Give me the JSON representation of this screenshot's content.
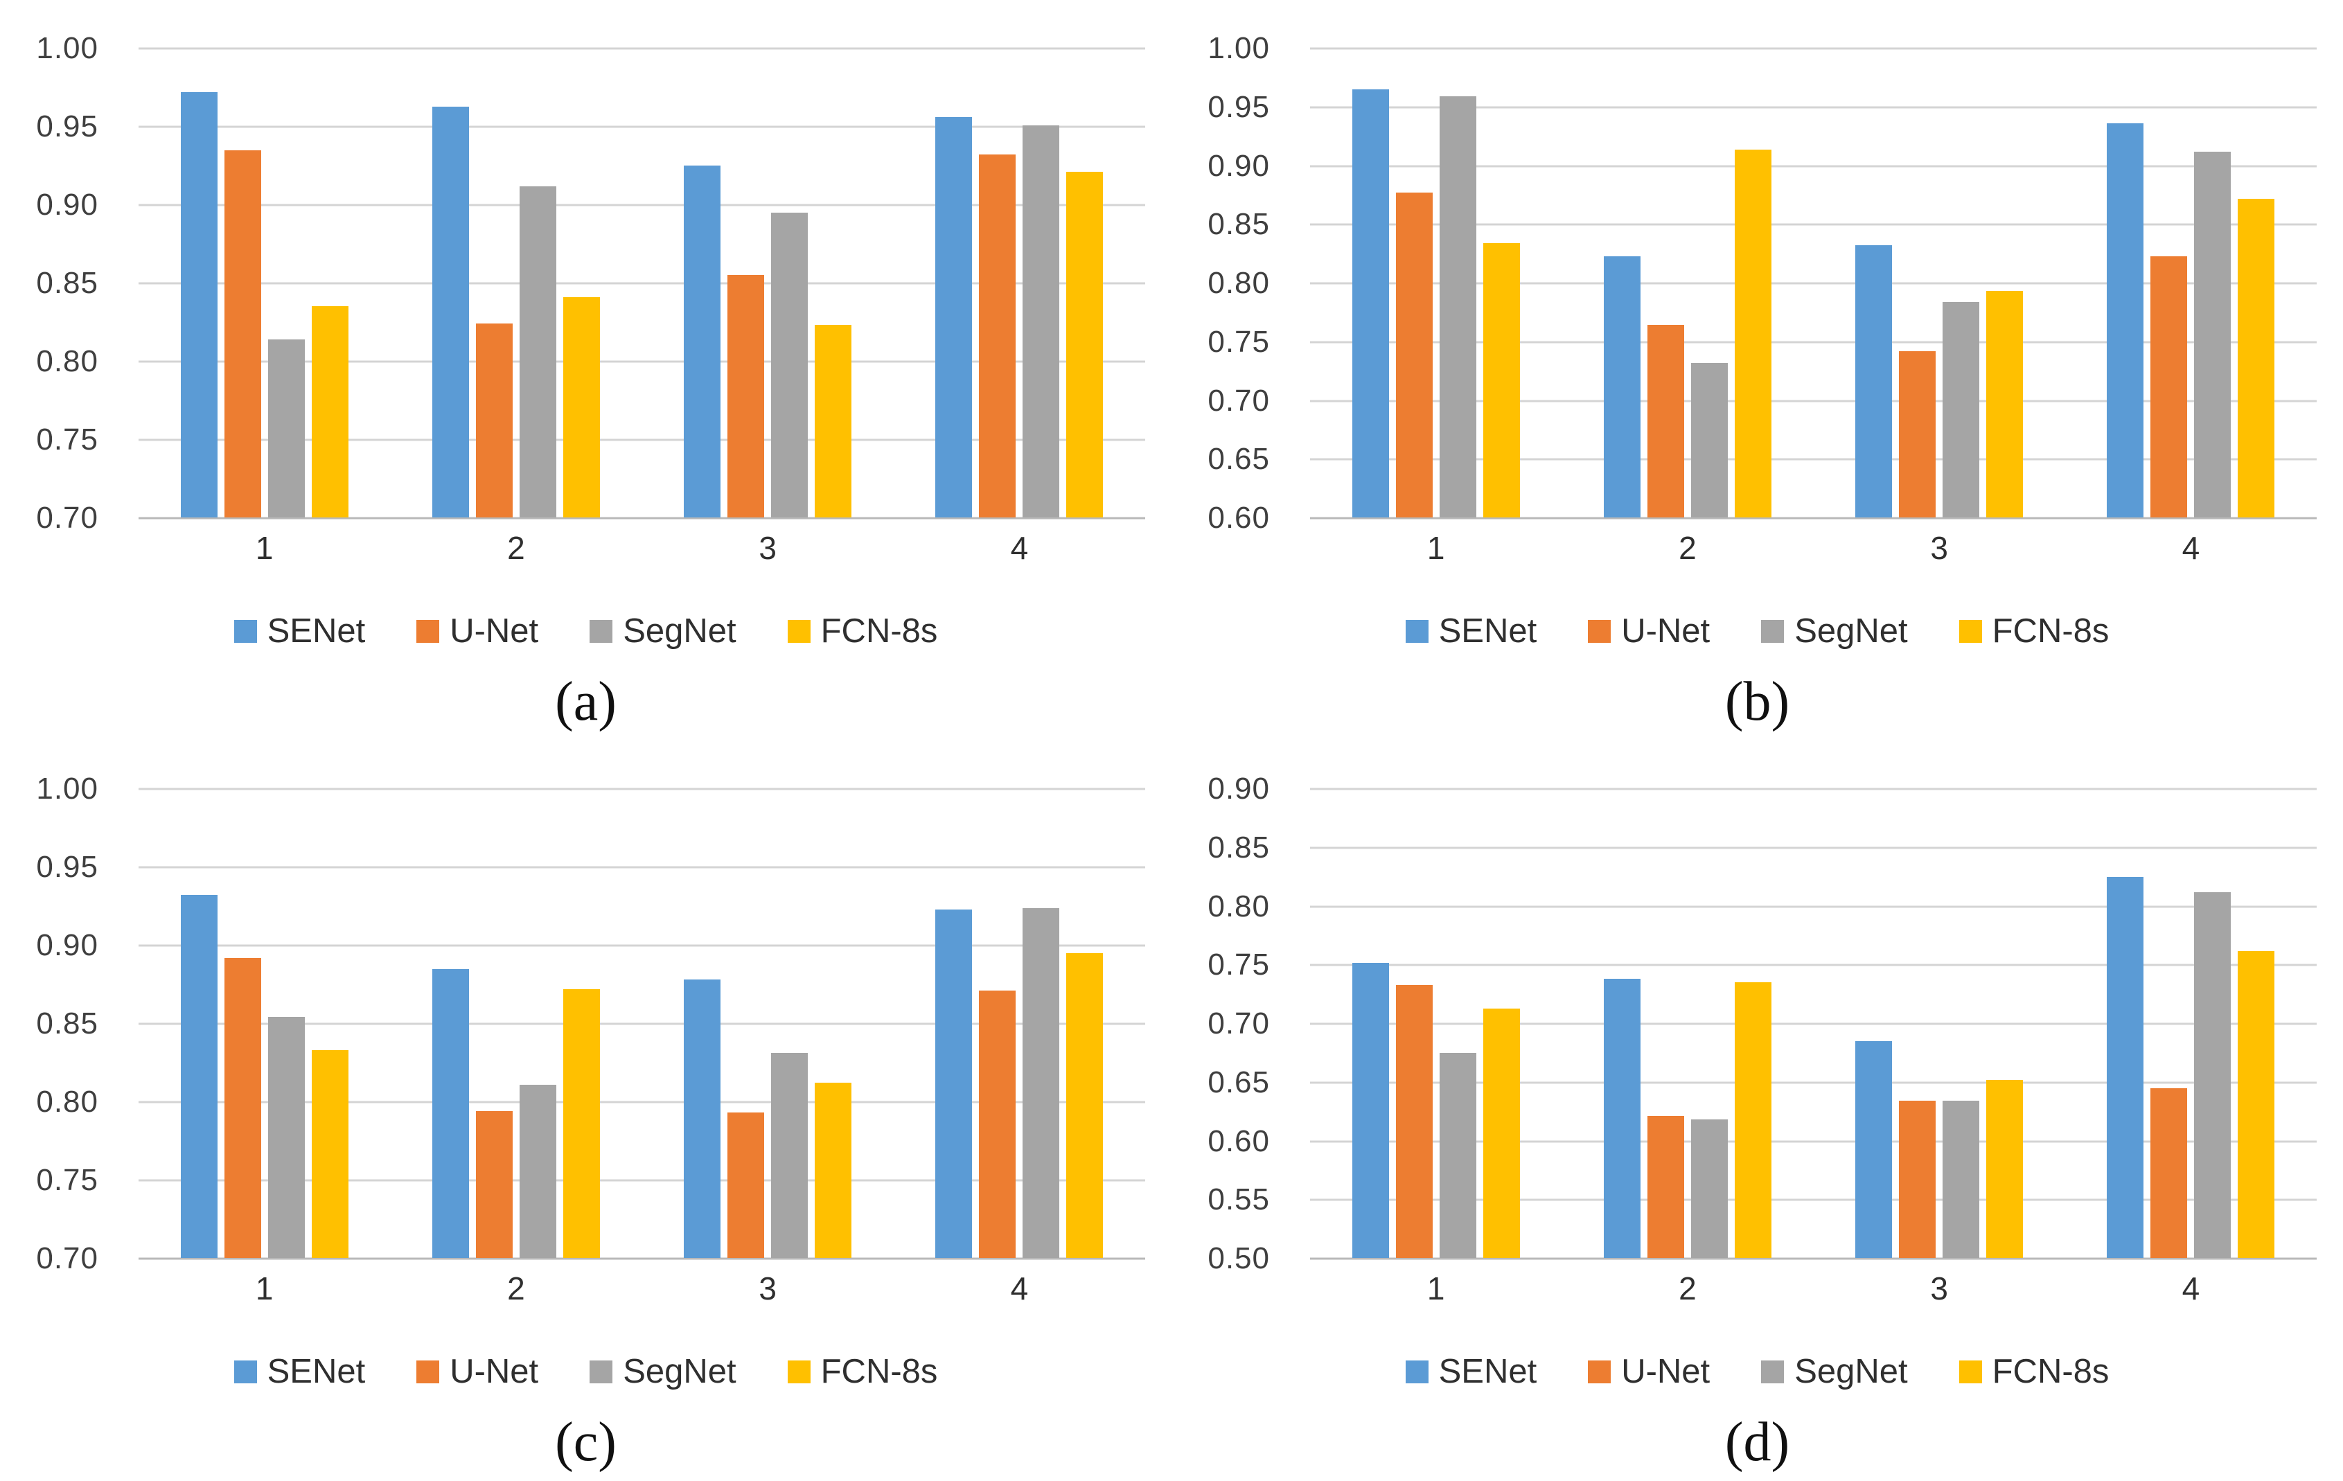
{
  "figure": {
    "panel_count": 4,
    "series_names": [
      "SENet",
      "U-Net",
      "SegNet",
      "FCN-8s"
    ],
    "colors": {
      "senet": "#5B9BD5",
      "u_net": "#ED7D31",
      "segnet": "#A5A5A5",
      "fcn_8s": "#FFC000"
    },
    "gridline_color": "#d4d4d4"
  },
  "chart_data": [
    {
      "id": "a",
      "type": "bar",
      "caption": "(a)",
      "categories": [
        "1",
        "2",
        "3",
        "4"
      ],
      "xlabel": "",
      "ylabel": "",
      "ylim": [
        0.7,
        1.0
      ],
      "ytick_step": 0.05,
      "grid": true,
      "legend_position": "bottom",
      "yticks": [
        "1.00",
        "0.95",
        "0.90",
        "0.85",
        "0.80",
        "0.75",
        "0.70"
      ],
      "series": [
        {
          "name": "SENet",
          "color": "#5B9BD5",
          "values": [
            0.972,
            0.963,
            0.925,
            0.956
          ]
        },
        {
          "name": "U-Net",
          "color": "#ED7D31",
          "values": [
            0.935,
            0.824,
            0.855,
            0.932
          ]
        },
        {
          "name": "SegNet",
          "color": "#A5A5A5",
          "values": [
            0.814,
            0.912,
            0.895,
            0.951
          ]
        },
        {
          "name": "FCN-8s",
          "color": "#FFC000",
          "values": [
            0.835,
            0.841,
            0.823,
            0.921
          ]
        }
      ]
    },
    {
      "id": "b",
      "type": "bar",
      "caption": "(b)",
      "categories": [
        "1",
        "2",
        "3",
        "4"
      ],
      "xlabel": "",
      "ylabel": "",
      "ylim": [
        0.6,
        1.0
      ],
      "ytick_step": 0.05,
      "grid": true,
      "legend_position": "bottom",
      "yticks": [
        "1.00",
        "0.95",
        "0.90",
        "0.85",
        "0.80",
        "0.75",
        "0.70",
        "0.65",
        "0.60"
      ],
      "series": [
        {
          "name": "SENet",
          "color": "#5B9BD5",
          "values": [
            0.965,
            0.823,
            0.832,
            0.936
          ]
        },
        {
          "name": "U-Net",
          "color": "#ED7D31",
          "values": [
            0.877,
            0.764,
            0.742,
            0.823
          ]
        },
        {
          "name": "SegNet",
          "color": "#A5A5A5",
          "values": [
            0.959,
            0.732,
            0.784,
            0.912
          ]
        },
        {
          "name": "FCN-8s",
          "color": "#FFC000",
          "values": [
            0.834,
            0.914,
            0.793,
            0.872
          ]
        }
      ]
    },
    {
      "id": "c",
      "type": "bar",
      "caption": "(c)",
      "categories": [
        "1",
        "2",
        "3",
        "4"
      ],
      "xlabel": "",
      "ylabel": "",
      "ylim": [
        0.7,
        1.0
      ],
      "ytick_step": 0.05,
      "grid": true,
      "legend_position": "bottom",
      "yticks": [
        "1.00",
        "0.95",
        "0.90",
        "0.85",
        "0.80",
        "0.75",
        "0.70"
      ],
      "series": [
        {
          "name": "SENet",
          "color": "#5B9BD5",
          "values": [
            0.932,
            0.885,
            0.878,
            0.923
          ]
        },
        {
          "name": "U-Net",
          "color": "#ED7D31",
          "values": [
            0.892,
            0.794,
            0.793,
            0.871
          ]
        },
        {
          "name": "SegNet",
          "color": "#A5A5A5",
          "values": [
            0.854,
            0.811,
            0.831,
            0.924
          ]
        },
        {
          "name": "FCN-8s",
          "color": "#FFC000",
          "values": [
            0.833,
            0.872,
            0.812,
            0.895
          ]
        }
      ]
    },
    {
      "id": "d",
      "type": "bar",
      "caption": "(d)",
      "categories": [
        "1",
        "2",
        "3",
        "4"
      ],
      "xlabel": "",
      "ylabel": "",
      "ylim": [
        0.5,
        0.9
      ],
      "ytick_step": 0.05,
      "grid": true,
      "legend_position": "bottom",
      "yticks": [
        "0.90",
        "0.85",
        "0.80",
        "0.75",
        "0.70",
        "0.65",
        "0.60",
        "0.55",
        "0.50"
      ],
      "series": [
        {
          "name": "SENet",
          "color": "#5B9BD5",
          "values": [
            0.752,
            0.738,
            0.685,
            0.825
          ]
        },
        {
          "name": "U-Net",
          "color": "#ED7D31",
          "values": [
            0.733,
            0.621,
            0.634,
            0.645
          ]
        },
        {
          "name": "SegNet",
          "color": "#A5A5A5",
          "values": [
            0.675,
            0.618,
            0.634,
            0.812
          ]
        },
        {
          "name": "FCN-8s",
          "color": "#FFC000",
          "values": [
            0.713,
            0.735,
            0.652,
            0.762
          ]
        }
      ]
    }
  ]
}
